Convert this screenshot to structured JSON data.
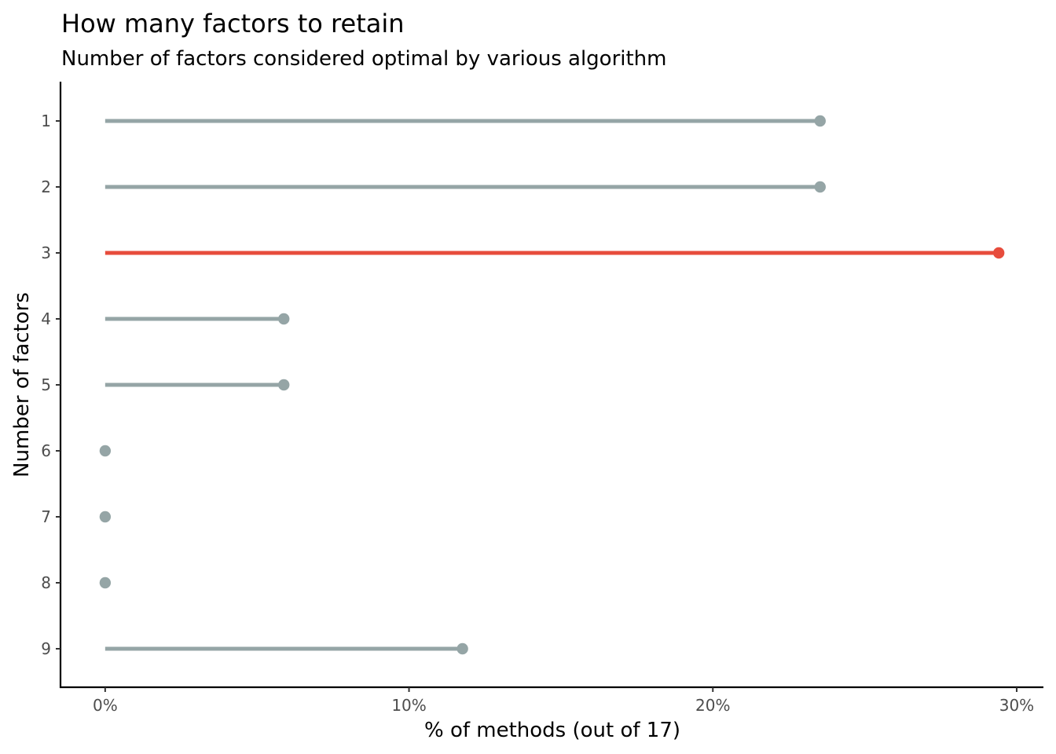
{
  "chart_data": {
    "type": "lollipop",
    "title": "How many factors to retain",
    "subtitle": "Number of factors considered optimal by various algorithm",
    "xlabel": "% of methods (out of 17)",
    "ylabel": "Number of factors",
    "xlim": [
      -0.0147,
      0.3088
    ],
    "x_ticks": [
      0,
      0.1,
      0.2,
      0.3
    ],
    "x_tick_labels": [
      "0%",
      "10%",
      "20%",
      "30%"
    ],
    "categories": [
      "1",
      "2",
      "3",
      "4",
      "5",
      "6",
      "7",
      "8",
      "9"
    ],
    "values": [
      0.2353,
      0.2353,
      0.2941,
      0.0588,
      0.0588,
      0,
      0,
      0,
      0.1176
    ],
    "highlight_category": "3",
    "grid": false,
    "legend": "none",
    "colors": {
      "default": "#95a5a6",
      "highlight": "#e74c3c",
      "axis": "#000000",
      "tick_label": "#4d4d4d"
    }
  }
}
